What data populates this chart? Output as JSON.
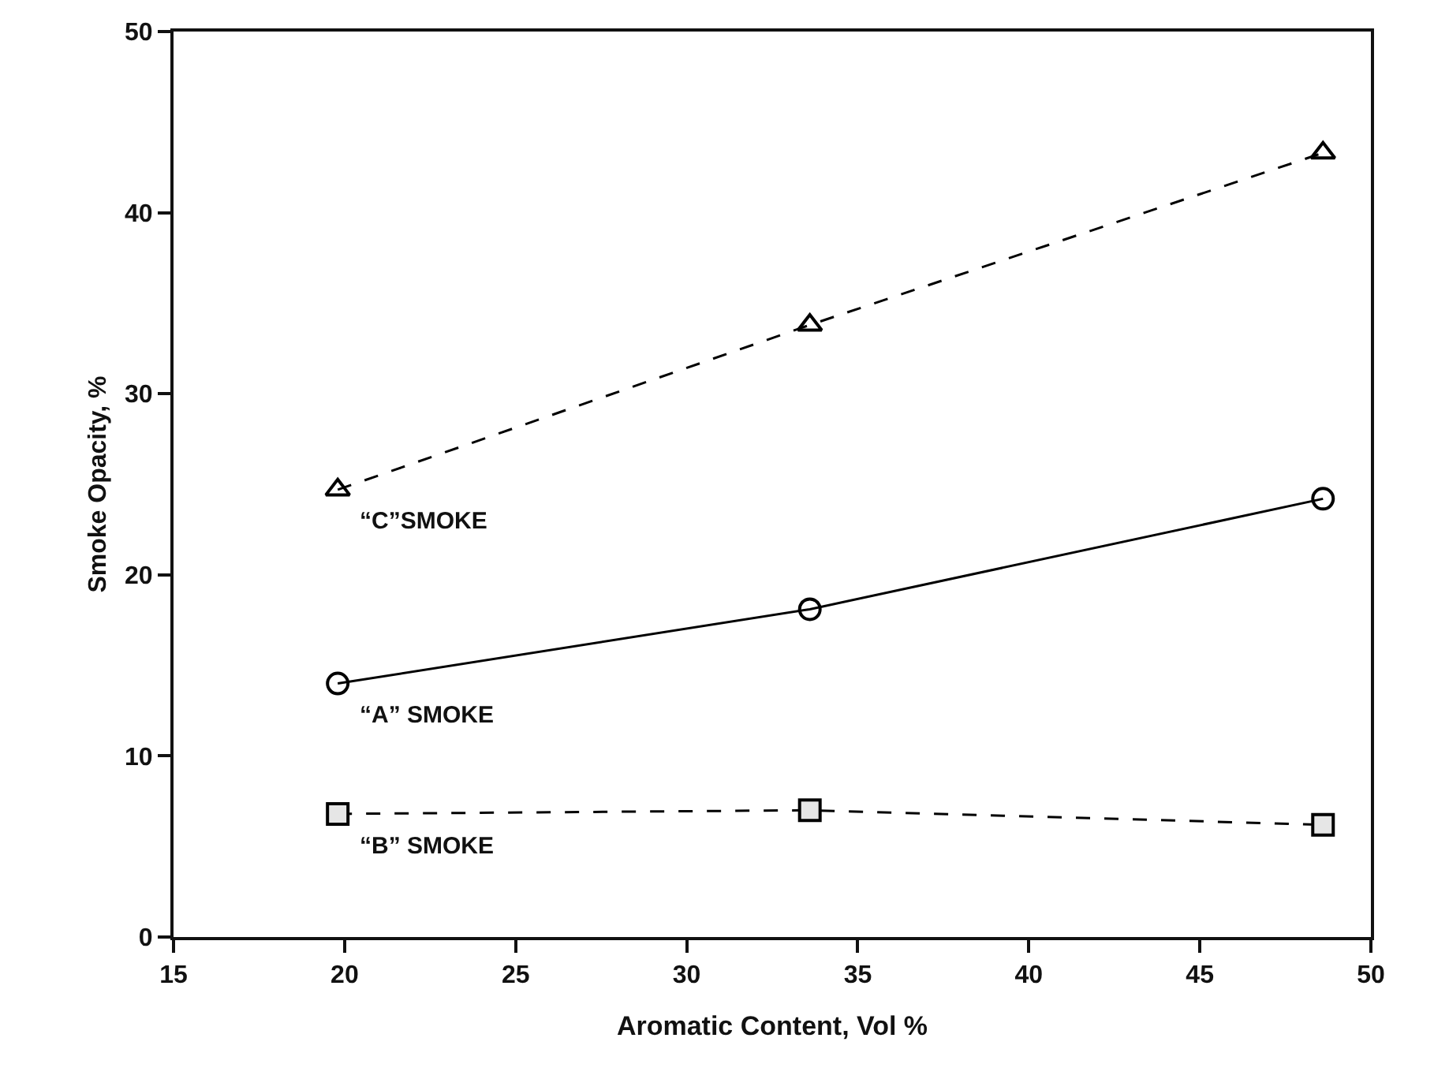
{
  "chart_data": {
    "type": "line",
    "xlabel": "Aromatic Content, Vol %",
    "ylabel": "Smoke Opacity, %",
    "x": [
      19.8,
      33.6,
      48.6
    ],
    "series": [
      {
        "name": "“C”SMOKE",
        "color": "#000000",
        "values": [
          24.7,
          33.8,
          43.3
        ],
        "marker": "triangle",
        "line_style": "dashed"
      },
      {
        "name": "“A” SMOKE",
        "color": "#000000",
        "values": [
          14,
          18.1,
          24.2
        ],
        "marker": "circle",
        "line_style": "solid"
      },
      {
        "name": "“B” SMOKE",
        "color": "#000000",
        "values": [
          6.8,
          7.0,
          6.2
        ],
        "marker": "square",
        "line_style": "dashed"
      }
    ],
    "xlim": [
      15,
      50
    ],
    "xticks": [
      15,
      20,
      25,
      30,
      35,
      40,
      45,
      50
    ],
    "ylim": [
      0,
      50
    ],
    "yticks": [
      0,
      10,
      20,
      30,
      40,
      50
    ],
    "grid": false,
    "legend": false
  }
}
